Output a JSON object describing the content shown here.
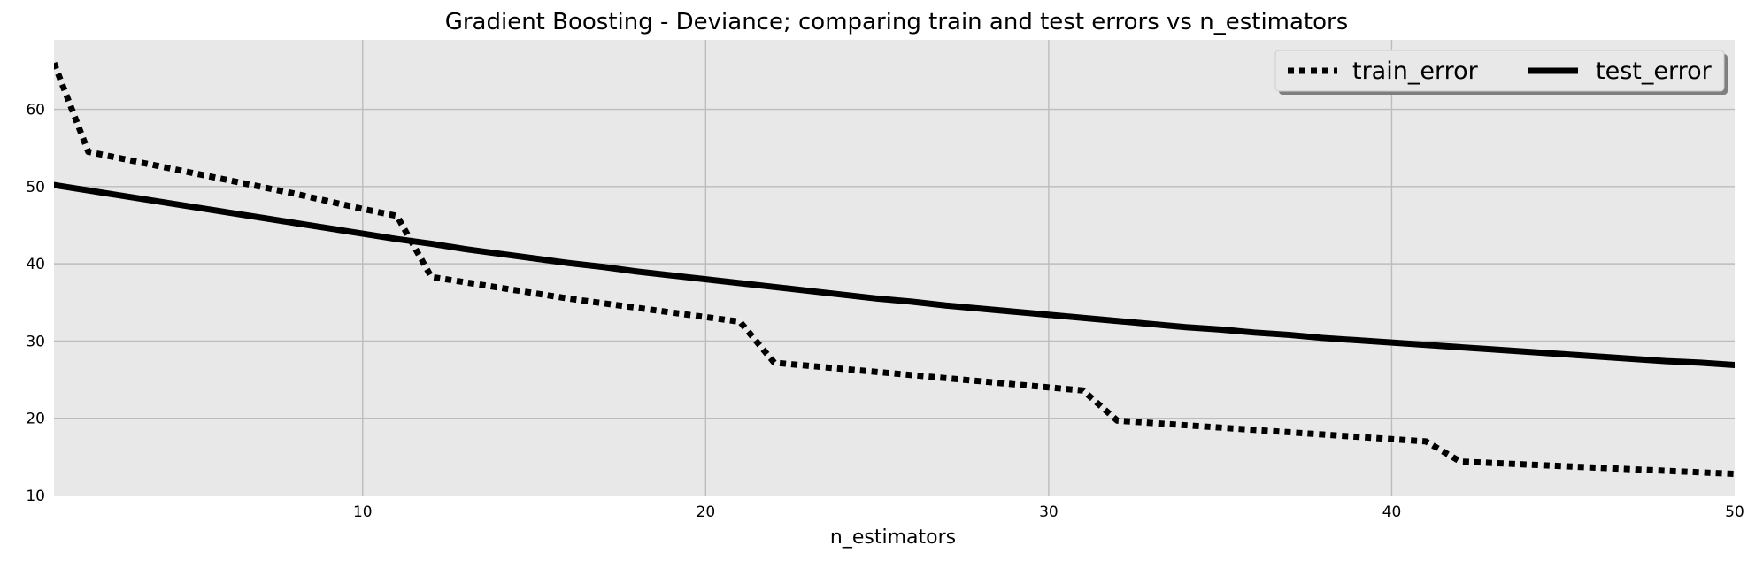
{
  "chart_data": {
    "type": "line",
    "title": "Gradient Boosting - Deviance; comparing train and test errors vs n_estimators",
    "xlabel": "n_estimators",
    "ylabel": "",
    "xlim": [
      1,
      50
    ],
    "ylim": [
      10,
      69
    ],
    "xticks": [
      10,
      20,
      30,
      40,
      50
    ],
    "yticks": [
      10,
      20,
      30,
      40,
      50,
      60
    ],
    "grid": true,
    "legend_position": "top-right",
    "legend_columns": 2,
    "background_color": "#e8e8e8",
    "grid_color": "#bcbcbc",
    "x": [
      1,
      2,
      3,
      4,
      5,
      6,
      7,
      8,
      9,
      10,
      11,
      12,
      13,
      14,
      15,
      16,
      17,
      18,
      19,
      20,
      21,
      22,
      23,
      24,
      25,
      26,
      27,
      28,
      29,
      30,
      31,
      32,
      33,
      34,
      35,
      36,
      37,
      38,
      39,
      40,
      41,
      42,
      43,
      44,
      45,
      46,
      47,
      48,
      49,
      50
    ],
    "series": [
      {
        "name": "train_error",
        "style": "dotted",
        "color": "#000000",
        "values": [
          66.0,
          54.5,
          53.6,
          52.7,
          51.8,
          50.9,
          50.0,
          49.1,
          48.1,
          47.1,
          46.2,
          38.3,
          37.6,
          36.9,
          36.2,
          35.5,
          34.9,
          34.3,
          33.7,
          33.1,
          32.5,
          27.2,
          26.8,
          26.4,
          26.0,
          25.6,
          25.2,
          24.8,
          24.4,
          24.0,
          23.6,
          19.7,
          19.4,
          19.1,
          18.8,
          18.5,
          18.2,
          17.9,
          17.6,
          17.3,
          17.0,
          14.4,
          14.2,
          14.0,
          13.8,
          13.6,
          13.4,
          13.2,
          13.0,
          12.8
        ]
      },
      {
        "name": "test_error",
        "style": "solid",
        "color": "#000000",
        "values": [
          50.2,
          49.5,
          48.8,
          48.1,
          47.4,
          46.7,
          46.0,
          45.3,
          44.6,
          43.9,
          43.2,
          42.6,
          41.9,
          41.3,
          40.7,
          40.1,
          39.6,
          39.0,
          38.5,
          38.0,
          37.5,
          37.0,
          36.5,
          36.0,
          35.5,
          35.1,
          34.6,
          34.2,
          33.8,
          33.4,
          33.0,
          32.6,
          32.2,
          31.8,
          31.5,
          31.1,
          30.8,
          30.4,
          30.1,
          29.8,
          29.5,
          29.2,
          28.9,
          28.6,
          28.3,
          28.0,
          27.7,
          27.4,
          27.2,
          26.9
        ]
      }
    ]
  }
}
